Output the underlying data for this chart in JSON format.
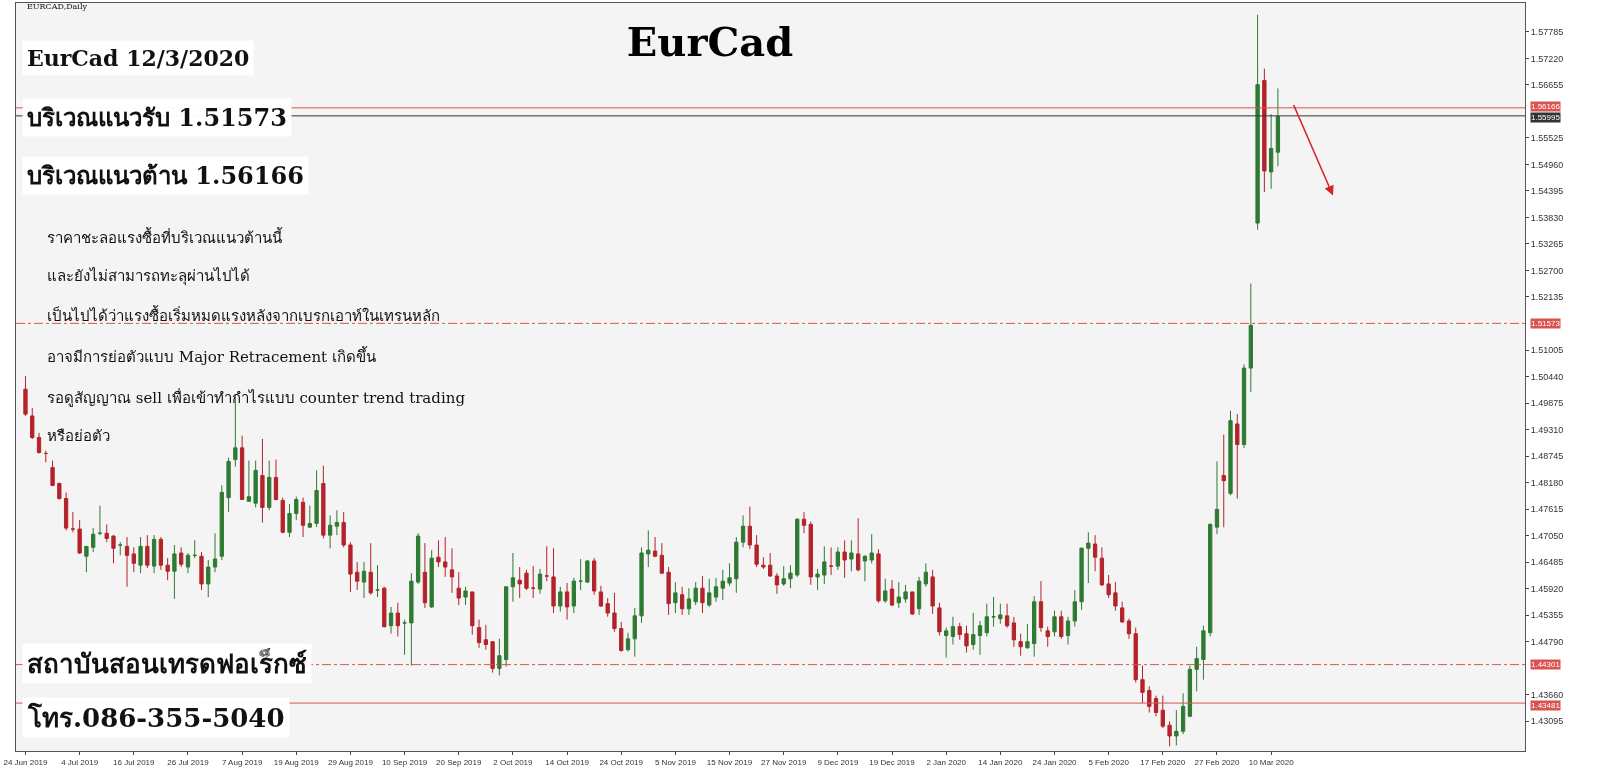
{
  "chart_data": {
    "type": "candlestick",
    "title": "EurCad",
    "annotations": [
      "EURCAD,Daily",
      "EurCad 12/3/2020",
      "บริเวณแนวรับ 1.51573",
      "บริเวณแนวต้าน 1.56166",
      "ราคาชะลอแรงซื้อที่บริเวณแนวต้านนี้",
      "และยังไม่สามารถทะลุผ่านไปได้",
      "เป็นไปได้ว่าแรงซื้อเริ่มหมดแรงหลังจากเบรกเอาท์ในเทรนหลัก",
      "อาจมีการย่อตัวแบบ Major Retracement เกิดขึ้น",
      "รอดูสัญญาณ sell เพื่อเข้าทำกำไรแบบ counter trend trading",
      "หรือย่อตัว",
      "สถาบันสอนเทรดฟอเร็กซ์",
      "โทร.086-355-5040"
    ],
    "categories": [
      "24 Jun 2019",
      null,
      null,
      null,
      null,
      null,
      null,
      null,
      "4 Jul 2019",
      null,
      null,
      null,
      null,
      null,
      null,
      null,
      "16 Jul 2019",
      null,
      null,
      null,
      null,
      null,
      null,
      null,
      "26 Jul 2019",
      null,
      null,
      null,
      null,
      null,
      null,
      null,
      "7 Aug 2019",
      null,
      null,
      null,
      null,
      null,
      null,
      null,
      "19 Aug 2019",
      null,
      null,
      null,
      null,
      null,
      null,
      null,
      "29 Aug 2019",
      null,
      null,
      null,
      null,
      null,
      null,
      null,
      "10 Sep 2019",
      null,
      null,
      null,
      null,
      null,
      null,
      null,
      "20 Sep 2019",
      null,
      null,
      null,
      null,
      null,
      null,
      null,
      "2 Oct 2019",
      null,
      null,
      null,
      null,
      null,
      null,
      null,
      "14 Oct 2019",
      null,
      null,
      null,
      null,
      null,
      null,
      null,
      "24 Oct 2019",
      null,
      null,
      null,
      null,
      null,
      null,
      null,
      "5 Nov 2019",
      null,
      null,
      null,
      null,
      null,
      null,
      null,
      "15 Nov 2019",
      null,
      null,
      null,
      null,
      null,
      null,
      null,
      "27 Nov 2019",
      null,
      null,
      null,
      null,
      null,
      null,
      null,
      "9 Dec 2019",
      null,
      null,
      null,
      null,
      null,
      null,
      null,
      "19 Dec 2019",
      null,
      null,
      null,
      null,
      null,
      null,
      null,
      "2 Jan 2020",
      null,
      null,
      null,
      null,
      null,
      null,
      null,
      "14 Jan 2020",
      null,
      null,
      null,
      null,
      null,
      null,
      null,
      "24 Jan 2020",
      null,
      null,
      null,
      null,
      null,
      null,
      null,
      "5 Feb 2020",
      null,
      null,
      null,
      null,
      null,
      null,
      null,
      "17 Feb 2020",
      null,
      null,
      null,
      null,
      null,
      null,
      null,
      "27 Feb 2020",
      null,
      null,
      null,
      null,
      null,
      null,
      null,
      "10 Mar 2020",
      null,
      null,
      null,
      null,
      null,
      null,
      null,
      null,
      null,
      null,
      null,
      null,
      null,
      null,
      null,
      null,
      null,
      null,
      null,
      null,
      null,
      null,
      null,
      null,
      null,
      null,
      null,
      null,
      null,
      null,
      null,
      null,
      null,
      null,
      null,
      null,
      null
    ],
    "ohlc": [
      [
        1.5017,
        1.5045,
        1.496,
        1.4964
      ],
      [
        1.496,
        1.4977,
        1.4911,
        1.4914
      ],
      [
        1.4914,
        1.4924,
        1.488,
        1.4882
      ],
      [
        1.488,
        1.4886,
        1.4861,
        1.488
      ],
      [
        1.485,
        1.4865,
        1.481,
        1.4812
      ],
      [
        1.4816,
        1.4818,
        1.4782,
        1.4784
      ],
      [
        1.4784,
        1.4797,
        1.4716,
        1.4721
      ],
      [
        1.4719,
        1.4755,
        1.4712,
        1.4719
      ],
      [
        1.4719,
        1.4738,
        1.4666,
        1.4668
      ],
      [
        1.4661,
        1.4682,
        1.4627,
        1.4682
      ],
      [
        1.468,
        1.4721,
        1.467,
        1.4708
      ],
      [
        1.471,
        1.4769,
        1.4706,
        1.471
      ],
      [
        1.471,
        1.4729,
        1.4691,
        1.4699
      ],
      [
        1.4704,
        1.4706,
        1.4646,
        1.4678
      ],
      [
        1.4685,
        1.4691,
        1.4663,
        1.4685
      ],
      [
        1.4682,
        1.4702,
        1.4596,
        1.4663
      ],
      [
        1.4666,
        1.468,
        1.4627,
        1.4646
      ],
      [
        1.4642,
        1.4702,
        1.4625,
        1.4682
      ],
      [
        1.4682,
        1.4706,
        1.4636,
        1.4642
      ],
      [
        1.464,
        1.4706,
        1.4625,
        1.4697
      ],
      [
        1.4697,
        1.4702,
        1.4632,
        1.4642
      ],
      [
        1.4642,
        1.4657,
        1.461,
        1.4629
      ],
      [
        1.4629,
        1.4685,
        1.457,
        1.4666
      ],
      [
        1.4668,
        1.468,
        1.4638,
        1.4644
      ],
      [
        1.4638,
        1.4668,
        1.4625,
        1.4663
      ],
      [
        1.4663,
        1.4695,
        1.4657,
        1.4663
      ],
      [
        1.4661,
        1.467,
        1.4589,
        1.4602
      ],
      [
        1.4602,
        1.4653,
        1.4574,
        1.4638
      ],
      [
        1.4638,
        1.471,
        1.4627,
        1.4655
      ],
      [
        1.4661,
        1.4812,
        1.4653,
        1.4797
      ],
      [
        1.4786,
        1.4871,
        1.4755,
        1.4863
      ],
      [
        1.4867,
        1.5007,
        1.4852,
        1.4892
      ],
      [
        1.4892,
        1.4918,
        1.4782,
        1.4782
      ],
      [
        1.4778,
        1.4865,
        1.4778,
        1.4788
      ],
      [
        1.4774,
        1.4865,
        1.4765,
        1.4844
      ],
      [
        1.4833,
        1.4911,
        1.4733,
        1.4765
      ],
      [
        1.4765,
        1.4865,
        1.4759,
        1.4829
      ],
      [
        1.4829,
        1.4867,
        1.478,
        1.4782
      ],
      [
        1.478,
        1.4786,
        1.471,
        1.4712
      ],
      [
        1.4712,
        1.4772,
        1.4702,
        1.4752
      ],
      [
        1.4752,
        1.4788,
        1.4738,
        1.4782
      ],
      [
        1.4776,
        1.4786,
        1.4702,
        1.4727
      ],
      [
        1.4723,
        1.4769,
        1.4721,
        1.4731
      ],
      [
        1.4731,
        1.4844,
        1.4723,
        1.4801
      ],
      [
        1.4816,
        1.4854,
        1.4699,
        1.4706
      ],
      [
        1.4706,
        1.4748,
        1.4678,
        1.4727
      ],
      [
        1.4725,
        1.4759,
        1.4706,
        1.4733
      ],
      [
        1.4733,
        1.4755,
        1.468,
        1.4685
      ],
      [
        1.4685,
        1.4691,
        1.4585,
        1.4623
      ],
      [
        1.4627,
        1.4649,
        1.4589,
        1.4608
      ],
      [
        1.4606,
        1.4649,
        1.4572,
        1.4629
      ],
      [
        1.4627,
        1.4689,
        1.4579,
        1.4583
      ],
      [
        1.4589,
        1.4642,
        1.4574,
        1.4589
      ],
      [
        1.4593,
        1.4596,
        1.4509,
        1.4511
      ],
      [
        1.4513,
        1.4553,
        1.4496,
        1.454
      ],
      [
        1.454,
        1.4562,
        1.449,
        1.4513
      ],
      [
        1.4519,
        1.4526,
        1.4451,
        1.4519
      ],
      [
        1.4519,
        1.4625,
        1.4428,
        1.4608
      ],
      [
        1.4606,
        1.471,
        1.4602,
        1.4704
      ],
      [
        1.4627,
        1.4689,
        1.4551,
        1.4562
      ],
      [
        1.4553,
        1.4674,
        1.4551,
        1.4657
      ],
      [
        1.4659,
        1.4695,
        1.4638,
        1.4649
      ],
      [
        1.4649,
        1.4702,
        1.4617,
        1.4638
      ],
      [
        1.4632,
        1.4678,
        1.4583,
        1.4617
      ],
      [
        1.4593,
        1.4627,
        1.4557,
        1.4572
      ],
      [
        1.4574,
        1.4596,
        1.4557,
        1.4587
      ],
      [
        1.4585,
        1.4585,
        1.4494,
        1.4513
      ],
      [
        1.4509,
        1.4526,
        1.4466,
        1.4477
      ],
      [
        1.4483,
        1.4515,
        1.4462,
        1.4473
      ],
      [
        1.4479,
        1.4479,
        1.4413,
        1.4422
      ],
      [
        1.4422,
        1.4485,
        1.4407,
        1.4449
      ],
      [
        1.4441,
        1.4596,
        1.4426,
        1.4596
      ],
      [
        1.4596,
        1.4668,
        1.4564,
        1.4615
      ],
      [
        1.461,
        1.4638,
        1.4572,
        1.4602
      ],
      [
        1.4625,
        1.4632,
        1.4589,
        1.4593
      ],
      [
        1.4593,
        1.464,
        1.4572,
        1.4593
      ],
      [
        1.4591,
        1.4634,
        1.4581,
        1.4623
      ],
      [
        1.4619,
        1.4682,
        1.4608,
        1.4619
      ],
      [
        1.4617,
        1.4678,
        1.454,
        1.4555
      ],
      [
        1.4555,
        1.4596,
        1.4543,
        1.4585
      ],
      [
        1.4585,
        1.4604,
        1.4526,
        1.4553
      ],
      [
        1.4555,
        1.4615,
        1.454,
        1.4608
      ],
      [
        1.4608,
        1.4655,
        1.4589,
        1.4608
      ],
      [
        1.4606,
        1.4653,
        1.4604,
        1.4651
      ],
      [
        1.4651,
        1.4657,
        1.4579,
        1.4587
      ],
      [
        1.4585,
        1.4598,
        1.4553,
        1.4555
      ],
      [
        1.456,
        1.4572,
        1.4532,
        1.454
      ],
      [
        1.454,
        1.4583,
        1.45,
        1.4507
      ],
      [
        1.4507,
        1.4521,
        1.4458,
        1.446
      ],
      [
        1.4462,
        1.4498,
        1.4458,
        1.4485
      ],
      [
        1.4485,
        1.4551,
        1.4447,
        1.4534
      ],
      [
        1.4534,
        1.468,
        1.4519,
        1.4668
      ],
      [
        1.4666,
        1.4716,
        1.4638,
        1.4674
      ],
      [
        1.4672,
        1.4702,
        1.4659,
        1.4661
      ],
      [
        1.4663,
        1.4689,
        1.4623,
        1.4625
      ],
      [
        1.4627,
        1.4638,
        1.4536,
        1.456
      ],
      [
        1.4562,
        1.4606,
        1.454,
        1.4583
      ],
      [
        1.4579,
        1.4596,
        1.4536,
        1.4549
      ],
      [
        1.4549,
        1.4593,
        1.4536,
        1.457
      ],
      [
        1.4564,
        1.4606,
        1.4557,
        1.4593
      ],
      [
        1.4593,
        1.4619,
        1.454,
        1.4562
      ],
      [
        1.4557,
        1.4613,
        1.4553,
        1.4583
      ],
      [
        1.4574,
        1.4615,
        1.4564,
        1.4596
      ],
      [
        1.4593,
        1.4632,
        1.4568,
        1.4608
      ],
      [
        1.4604,
        1.4646,
        1.4598,
        1.4615
      ],
      [
        1.4613,
        1.4702,
        1.4583,
        1.4691
      ],
      [
        1.4691,
        1.4748,
        1.468,
        1.4725
      ],
      [
        1.4725,
        1.4767,
        1.4676,
        1.4685
      ],
      [
        1.4685,
        1.4706,
        1.4638,
        1.4644
      ],
      [
        1.4642,
        1.4659,
        1.4634,
        1.4638
      ],
      [
        1.4642,
        1.4668,
        1.4617,
        1.4619
      ],
      [
        1.4619,
        1.4625,
        1.4581,
        1.46
      ],
      [
        1.4602,
        1.464,
        1.4598,
        1.4613
      ],
      [
        1.4613,
        1.4642,
        1.4593,
        1.4625
      ],
      [
        1.4621,
        1.4742,
        1.4617,
        1.474
      ],
      [
        1.474,
        1.4755,
        1.471,
        1.4727
      ],
      [
        1.4729,
        1.4735,
        1.46,
        1.4617
      ],
      [
        1.4617,
        1.4634,
        1.4589,
        1.4623
      ],
      [
        1.4621,
        1.4682,
        1.4602,
        1.4649
      ],
      [
        1.464,
        1.468,
        1.4621,
        1.464
      ],
      [
        1.464,
        1.468,
        1.4632,
        1.467
      ],
      [
        1.467,
        1.4695,
        1.4615,
        1.4653
      ],
      [
        1.4655,
        1.4695,
        1.4629,
        1.4668
      ],
      [
        1.4666,
        1.4742,
        1.4629,
        1.4632
      ],
      [
        1.4651,
        1.4663,
        1.4608,
        1.4661
      ],
      [
        1.4653,
        1.4708,
        1.4646,
        1.4668
      ],
      [
        1.4666,
        1.4676,
        1.4562,
        1.4566
      ],
      [
        1.4566,
        1.4613,
        1.4562,
        1.4587
      ],
      [
        1.4591,
        1.461,
        1.4555,
        1.4557
      ],
      [
        1.4562,
        1.4606,
        1.4551,
        1.4574
      ],
      [
        1.457,
        1.46,
        1.4562,
        1.4585
      ],
      [
        1.4585,
        1.4585,
        1.4536,
        1.4538
      ],
      [
        1.4549,
        1.4617,
        1.4536,
        1.4608
      ],
      [
        1.4602,
        1.4646,
        1.4596,
        1.4627
      ],
      [
        1.4617,
        1.4632,
        1.4538,
        1.4555
      ],
      [
        1.4551,
        1.4562,
        1.4492,
        1.45
      ],
      [
        1.4492,
        1.4509,
        1.4445,
        1.4502
      ],
      [
        1.449,
        1.4532,
        1.4473,
        1.4511
      ],
      [
        1.4511,
        1.4519,
        1.4483,
        1.4494
      ],
      [
        1.4496,
        1.4513,
        1.4456,
        1.447
      ],
      [
        1.4473,
        1.454,
        1.4462,
        1.4494
      ],
      [
        1.4492,
        1.4523,
        1.4451,
        1.4513
      ],
      [
        1.4498,
        1.456,
        1.449,
        1.4532
      ],
      [
        1.4532,
        1.4574,
        1.4511,
        1.4532
      ],
      [
        1.4528,
        1.456,
        1.4517,
        1.4536
      ],
      [
        1.4534,
        1.456,
        1.4509,
        1.4513
      ],
      [
        1.4519,
        1.4532,
        1.4468,
        1.4483
      ],
      [
        1.4479,
        1.4496,
        1.4449,
        1.4468
      ],
      [
        1.4466,
        1.4517,
        1.4464,
        1.4479
      ],
      [
        1.4475,
        1.4576,
        1.4447,
        1.4564
      ],
      [
        1.4564,
        1.4608,
        1.45,
        1.4509
      ],
      [
        1.4502,
        1.4511,
        1.4468,
        1.449
      ],
      [
        1.45,
        1.4545,
        1.449,
        1.4532
      ],
      [
        1.4532,
        1.4545,
        1.4485,
        1.449
      ],
      [
        1.4492,
        1.4532,
        1.4473,
        1.4523
      ],
      [
        1.4523,
        1.4589,
        1.4511,
        1.4564
      ],
      [
        1.4564,
        1.468,
        1.4547,
        1.4678
      ],
      [
        1.4678,
        1.4712,
        1.4604,
        1.4689
      ],
      [
        1.4687,
        1.4706,
        1.4629,
        1.4659
      ],
      [
        1.4657,
        1.468,
        1.4598,
        1.46
      ],
      [
        1.4602,
        1.4621,
        1.4572,
        1.4579
      ],
      [
        1.4583,
        1.4606,
        1.4545,
        1.4555
      ],
      [
        1.4551,
        1.4564,
        1.4519,
        1.4521
      ],
      [
        1.4523,
        1.4528,
        1.4485,
        1.4496
      ],
      [
        1.4496,
        1.4509,
        1.4392,
        1.4398
      ],
      [
        1.4398,
        1.4428,
        1.4348,
        1.4371
      ],
      [
        1.4375,
        1.4384,
        1.4328,
        1.4341
      ],
      [
        1.4358,
        1.4364,
        1.432,
        1.4328
      ],
      [
        1.4333,
        1.4364,
        1.4295,
        1.4299
      ],
      [
        1.4301,
        1.4309,
        1.4256,
        1.4278
      ],
      [
        1.4278,
        1.4333,
        1.4258,
        1.4288
      ],
      [
        1.4288,
        1.4369,
        1.4282,
        1.4341
      ],
      [
        1.432,
        1.4428,
        1.4318,
        1.442
      ],
      [
        1.442,
        1.4468,
        1.4373,
        1.4443
      ],
      [
        1.4441,
        1.4513,
        1.4398,
        1.4502
      ],
      [
        1.4498,
        1.4731,
        1.449,
        1.4729
      ],
      [
        1.4723,
        1.4863,
        1.4708,
        1.4761
      ],
      [
        1.4833,
        1.492,
        1.4723,
        1.4822
      ],
      [
        1.4795,
        1.4971,
        1.4791,
        1.495
      ],
      [
        1.4943,
        1.4964,
        1.4784,
        1.4899
      ],
      [
        1.4899,
        1.507,
        1.4892,
        1.5062
      ],
      [
        1.5062,
        1.5242,
        1.5011,
        1.5153
      ],
      [
        1.5371,
        1.5815,
        1.5357,
        1.5666
      ],
      [
        1.5675,
        1.57,
        1.5437,
        1.5482
      ],
      [
        1.548,
        1.5603,
        1.5444,
        1.553
      ],
      [
        1.5522,
        1.5658,
        1.5492,
        1.5598
      ],
      null,
      null,
      null,
      null,
      null,
      null,
      null,
      null,
      null,
      null,
      null,
      null,
      null,
      null,
      null,
      null,
      null,
      null,
      null,
      null,
      null,
      null,
      null,
      null,
      null,
      null,
      null,
      null,
      null,
      null,
      null,
      null,
      null,
      null,
      null,
      null
    ],
    "colors": [
      "#b3232a",
      "#b3232a",
      "#b3232a",
      "#b3232a",
      "#b3232a",
      "#b3232a",
      "#b3232a",
      "#b3232a",
      "#b3232a",
      "#2f7a32",
      "#2f7a32",
      "#2f7a32",
      "#b3232a",
      "#b3232a",
      "#2f7a32",
      "#b3232a",
      "#b3232a",
      "#2f7a32",
      "#b3232a",
      "#2f7a32",
      "#b3232a",
      "#b3232a",
      "#2f7a32",
      "#b3232a",
      "#2f7a32",
      "#2f7a32",
      "#b3232a",
      "#2f7a32",
      "#2f7a32",
      "#2f7a32",
      "#2f7a32",
      "#2f7a32",
      "#b3232a",
      "#2f7a32",
      "#2f7a32",
      "#b3232a",
      "#2f7a32",
      "#b3232a",
      "#b3232a",
      "#2f7a32",
      "#2f7a32",
      "#b3232a",
      "#2f7a32",
      "#2f7a32",
      "#b3232a",
      "#2f7a32",
      "#2f7a32",
      "#b3232a",
      "#b3232a",
      "#b3232a",
      "#2f7a32",
      "#b3232a",
      "#2f7a32",
      "#b3232a",
      "#2f7a32",
      "#b3232a",
      "#2f7a32",
      "#2f7a32",
      "#2f7a32",
      "#b3232a",
      "#2f7a32",
      "#b3232a",
      "#b3232a",
      "#b3232a",
      "#b3232a",
      "#2f7a32",
      "#b3232a",
      "#b3232a",
      "#b3232a",
      "#b3232a",
      "#2f7a32",
      "#2f7a32",
      "#2f7a32",
      "#b3232a",
      "#b3232a",
      "#b3232a",
      "#2f7a32",
      "#b3232a",
      "#b3232a",
      "#2f7a32",
      "#b3232a",
      "#2f7a32",
      "#2f7a32",
      "#2f7a32",
      "#b3232a",
      "#b3232a",
      "#b3232a",
      "#b3232a",
      "#b3232a",
      "#2f7a32",
      "#2f7a32",
      "#2f7a32",
      "#2f7a32",
      "#b3232a",
      "#b3232a",
      "#b3232a",
      "#2f7a32",
      "#b3232a",
      "#2f7a32",
      "#2f7a32",
      "#b3232a",
      "#2f7a32",
      "#2f7a32",
      "#2f7a32",
      "#2f7a32",
      "#2f7a32",
      "#2f7a32",
      "#b3232a",
      "#b3232a",
      "#b3232a",
      "#b3232a",
      "#b3232a",
      "#2f7a32",
      "#2f7a32",
      "#2f7a32",
      "#b3232a",
      "#b3232a",
      "#2f7a32",
      "#2f7a32",
      "#b3232a",
      "#2f7a32",
      "#b3232a",
      "#2f7a32",
      "#b3232a",
      "#2f7a32",
      "#2f7a32",
      "#b3232a",
      "#2f7a32",
      "#b3232a",
      "#2f7a32",
      "#2f7a32",
      "#b3232a",
      "#2f7a32",
      "#2f7a32",
      "#b3232a",
      "#b3232a",
      "#2f7a32",
      "#2f7a32",
      "#b3232a",
      "#b3232a",
      "#2f7a32",
      "#2f7a32",
      "#2f7a32",
      "#2f7a32",
      "#2f7a32",
      "#b3232a",
      "#b3232a",
      "#b3232a",
      "#2f7a32",
      "#2f7a32",
      "#b3232a",
      "#b3232a",
      "#2f7a32",
      "#b3232a",
      "#2f7a32",
      "#2f7a32",
      "#2f7a32",
      "#2f7a32",
      "#b3232a",
      "#b3232a",
      "#b3232a",
      "#b3232a",
      "#b3232a",
      "#b3232a",
      "#b3232a",
      "#b3232a",
      "#b3232a",
      "#b3232a",
      "#b3232a",
      "#b3232a",
      "#2f7a32",
      "#2f7a32",
      "#2f7a32",
      "#2f7a32",
      "#2f7a32",
      "#2f7a32",
      "#2f7a32",
      "#b3232a",
      "#2f7a32",
      "#b3232a",
      "#2f7a32",
      "#2f7a32",
      "#2f7a32",
      "#b3232a",
      "#2f7a32",
      "#2f7a32",
      null,
      null,
      null,
      null,
      null,
      null,
      null,
      null,
      null,
      null,
      null,
      null,
      null,
      null,
      null,
      null,
      null,
      null,
      null,
      null,
      null,
      null,
      null,
      null,
      null,
      null,
      null,
      null,
      null,
      null,
      null,
      null,
      null,
      null,
      null,
      null
    ],
    "ylim": [
      1.4246,
      1.584
    ],
    "yticks": [
      1.57785,
      {
        "value": 1.5722,
        "label": "1.57220"
      },
      1.56655,
      1.55525,
      {
        "value": 1.5496,
        "label": "1.54960"
      },
      1.54395,
      {
        "value": 1.5383,
        "label": "1.53830"
      },
      1.53265,
      {
        "value": 1.527,
        "label": "1.52700"
      },
      1.52135,
      1.51005,
      {
        "value": 1.5044,
        "label": "1.50440"
      },
      1.49875,
      {
        "value": 1.4931,
        "label": "1.49310"
      },
      1.48745,
      {
        "value": 1.4818,
        "label": "1.48180"
      },
      1.47615,
      {
        "value": 1.4705,
        "label": "1.47050"
      },
      1.46485,
      {
        "value": 1.4592,
        "label": "1.45920"
      },
      1.45355,
      {
        "value": 1.4479,
        "label": "1.44790"
      },
      {
        "value": 1.4366,
        "label": "1.43660"
      },
      1.43095
    ],
    "ref_lines": [
      {
        "axis": "y",
        "value": 1.56166,
        "label": "1.56166",
        "color": "#d9534f",
        "line_style": "solid"
      },
      {
        "axis": "y",
        "value": 1.55995,
        "label": "1.55995",
        "color": "#333333",
        "line_style": "solid"
      },
      {
        "axis": "y",
        "value": 1.51573,
        "label": "1.51573",
        "color": "#d9534f",
        "line_style": "dashdot"
      },
      {
        "axis": "y",
        "value": 1.44301,
        "label": "1.44301",
        "color": "#d9534f",
        "line_style": "dashdot"
      },
      {
        "axis": "y",
        "value": 1.43481,
        "label": "1.43481",
        "color": "#d9534f",
        "line_style": "solid"
      }
    ]
  }
}
